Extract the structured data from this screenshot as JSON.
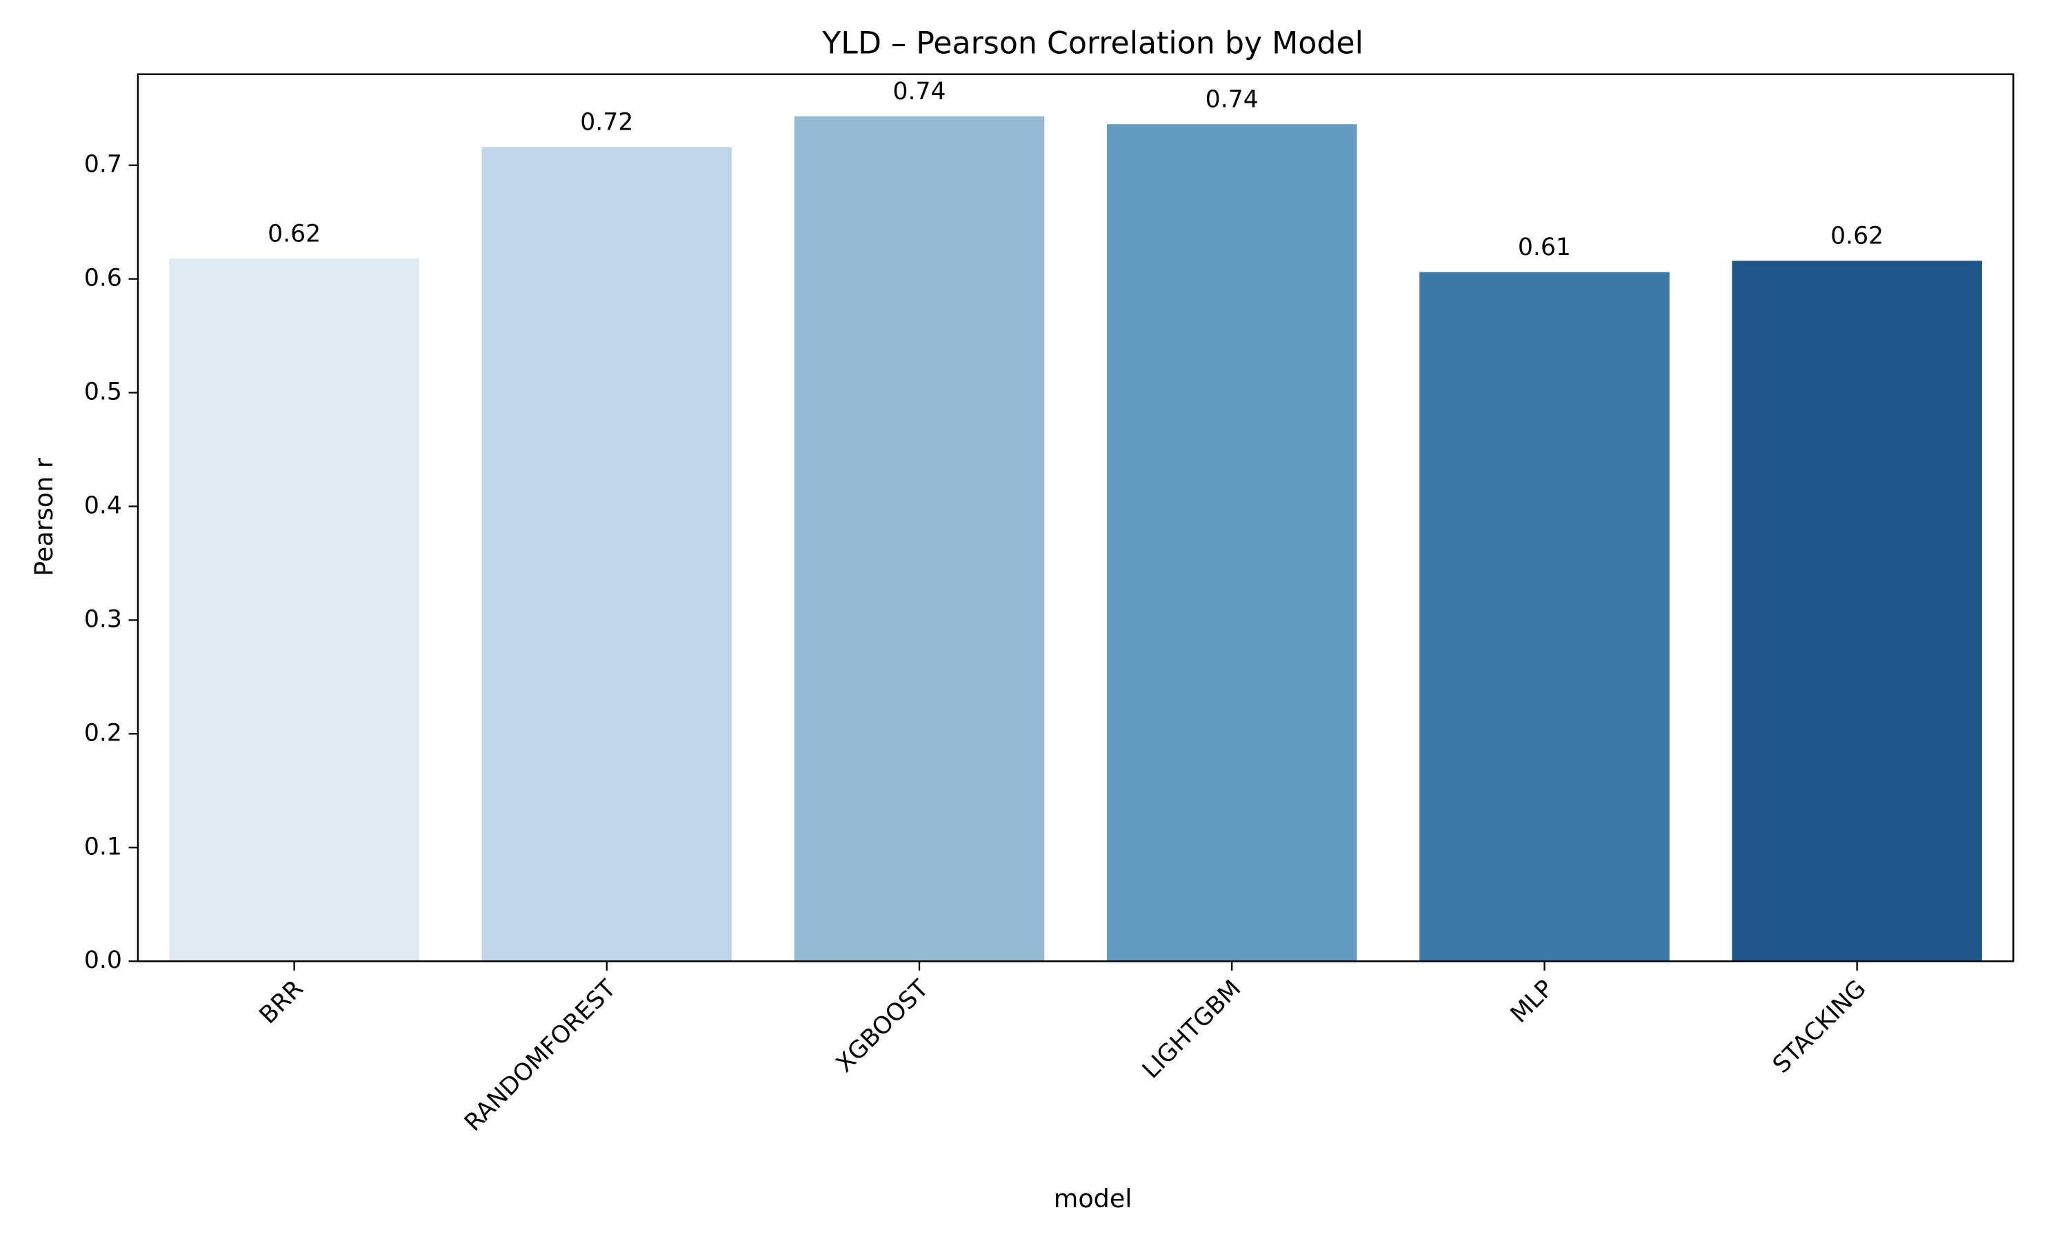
{
  "chart_data": {
    "type": "bar",
    "title": "YLD – Pearson Correlation by Model",
    "x_label": "model",
    "y_label": "Pearson r",
    "categories": [
      "BRR",
      "RANDOMFOREST",
      "XGBOOST",
      "LIGHTGBM",
      "MLP",
      "STACKING"
    ],
    "values": [
      0.618,
      0.716,
      0.743,
      0.736,
      0.606,
      0.616
    ],
    "value_labels": [
      "0.62",
      "0.72",
      "0.74",
      "0.74",
      "0.61",
      "0.62"
    ],
    "colors": [
      "#dee9f4",
      "#c0d6e6",
      "#94bbd3",
      "#629bbf",
      "#3d79a8",
      "#21568c"
    ],
    "ylim": [
      0,
      0.78
    ],
    "yticks": [
      {
        "value": 0,
        "label": "0.0"
      },
      0.1,
      0.2,
      0.3,
      0.4,
      0.5,
      0.6,
      0.7
    ],
    "grid": false
  }
}
